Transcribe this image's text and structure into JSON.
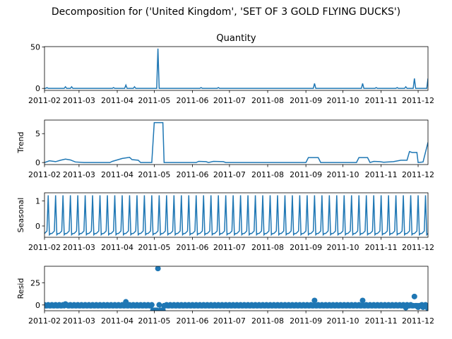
{
  "figure_title": "Decomposition for ('United Kingdom', 'SET OF 3 GOLD FLYING DUCKS')",
  "line_color": "#1f77b4",
  "x_tick_labels": [
    "2011-02",
    "2011-03",
    "2011-04",
    "2011-05",
    "2011-06",
    "2011-07",
    "2011-08",
    "2011-09",
    "2011-10",
    "2011-11",
    "2011-12"
  ],
  "chart_data": [
    {
      "type": "line",
      "title": "Quantity",
      "ylabel": "",
      "xlim": [
        "2011-02-01",
        "2011-12-09"
      ],
      "ylim": [
        -2.4,
        50.4
      ],
      "yticks": [
        0,
        50
      ],
      "x_tick_labels": [
        "2011-02",
        "2011-03",
        "2011-04",
        "2011-05",
        "2011-06",
        "2011-07",
        "2011-08",
        "2011-09",
        "2011-10",
        "2011-11",
        "2011-12"
      ],
      "baseline": 0,
      "x_start": "2011-02-01",
      "x_end": "2011-12-09",
      "points": [
        {
          "x": "2011-02-03",
          "y": 1
        },
        {
          "x": "2011-02-18",
          "y": 2
        },
        {
          "x": "2011-02-23",
          "y": 2
        },
        {
          "x": "2011-03-29",
          "y": 1
        },
        {
          "x": "2011-04-08",
          "y": 4
        },
        {
          "x": "2011-04-15",
          "y": 2
        },
        {
          "x": "2011-05-04",
          "y": 48
        },
        {
          "x": "2011-06-08",
          "y": 1
        },
        {
          "x": "2011-06-22",
          "y": 1
        },
        {
          "x": "2011-09-08",
          "y": 6
        },
        {
          "x": "2011-10-17",
          "y": 6
        },
        {
          "x": "2011-10-28",
          "y": 1
        },
        {
          "x": "2011-11-14",
          "y": 1
        },
        {
          "x": "2011-11-21",
          "y": 2
        },
        {
          "x": "2011-11-28",
          "y": 12
        },
        {
          "x": "2011-12-09",
          "y": 12
        }
      ]
    },
    {
      "type": "line",
      "title": "",
      "ylabel": "Trend",
      "xlim": [
        "2011-02-01",
        "2011-12-09"
      ],
      "ylim": [
        -0.35,
        7.35
      ],
      "yticks": [
        0,
        5
      ],
      "x_tick_labels": [
        "2011-02",
        "2011-03",
        "2011-04",
        "2011-05",
        "2011-06",
        "2011-07",
        "2011-08",
        "2011-09",
        "2011-10",
        "2011-11",
        "2011-12"
      ],
      "points": [
        {
          "x": "2011-02-01",
          "y": 0
        },
        {
          "x": "2011-02-05",
          "y": 0.3
        },
        {
          "x": "2011-02-10",
          "y": 0.15
        },
        {
          "x": "2011-02-14",
          "y": 0.4
        },
        {
          "x": "2011-02-18",
          "y": 0.6
        },
        {
          "x": "2011-02-22",
          "y": 0.45
        },
        {
          "x": "2011-02-26",
          "y": 0.1
        },
        {
          "x": "2011-03-05",
          "y": 0
        },
        {
          "x": "2011-03-26",
          "y": 0
        },
        {
          "x": "2011-03-28",
          "y": 0.2
        },
        {
          "x": "2011-04-05",
          "y": 0.7
        },
        {
          "x": "2011-04-11",
          "y": 0.9
        },
        {
          "x": "2011-04-13",
          "y": 0.5
        },
        {
          "x": "2011-04-18",
          "y": 0.4
        },
        {
          "x": "2011-04-20",
          "y": 0
        },
        {
          "x": "2011-04-29",
          "y": 0
        },
        {
          "x": "2011-05-01",
          "y": 6.9
        },
        {
          "x": "2011-05-08",
          "y": 6.9
        },
        {
          "x": "2011-05-09",
          "y": 0
        },
        {
          "x": "2011-06-04",
          "y": 0
        },
        {
          "x": "2011-06-06",
          "y": 0.2
        },
        {
          "x": "2011-06-12",
          "y": 0.15
        },
        {
          "x": "2011-06-14",
          "y": 0
        },
        {
          "x": "2011-06-18",
          "y": 0.2
        },
        {
          "x": "2011-06-26",
          "y": 0.15
        },
        {
          "x": "2011-06-28",
          "y": 0
        },
        {
          "x": "2011-09-01",
          "y": 0
        },
        {
          "x": "2011-09-03",
          "y": 0.85
        },
        {
          "x": "2011-09-11",
          "y": 0.85
        },
        {
          "x": "2011-09-13",
          "y": 0
        },
        {
          "x": "2011-10-12",
          "y": 0
        },
        {
          "x": "2011-10-14",
          "y": 0.85
        },
        {
          "x": "2011-10-21",
          "y": 0.85
        },
        {
          "x": "2011-10-23",
          "y": 0
        },
        {
          "x": "2011-10-26",
          "y": 0.2
        },
        {
          "x": "2011-10-31",
          "y": 0.15
        },
        {
          "x": "2011-11-03",
          "y": 0.05
        },
        {
          "x": "2011-11-11",
          "y": 0.15
        },
        {
          "x": "2011-11-17",
          "y": 0.4
        },
        {
          "x": "2011-11-22",
          "y": 0.4
        },
        {
          "x": "2011-11-24",
          "y": 1.9
        },
        {
          "x": "2011-11-26",
          "y": 1.75
        },
        {
          "x": "2011-11-30",
          "y": 1.75
        },
        {
          "x": "2011-12-01",
          "y": 0
        },
        {
          "x": "2011-12-05",
          "y": 0.1
        },
        {
          "x": "2011-12-09",
          "y": 3.5
        }
      ]
    },
    {
      "type": "line",
      "title": "",
      "ylabel": "Seasonal",
      "xlim": [
        "2011-02-01",
        "2011-12-09"
      ],
      "ylim": [
        -0.45,
        1.32
      ],
      "yticks": [
        0,
        1
      ],
      "x_tick_labels": [
        "2011-02",
        "2011-03",
        "2011-04",
        "2011-05",
        "2011-06",
        "2011-07",
        "2011-08",
        "2011-09",
        "2011-10",
        "2011-11",
        "2011-12"
      ],
      "period_days": 6,
      "first_peak": "2011-02-04",
      "peak_value": 1.22,
      "trough_value": -0.35,
      "baseline_value": -0.25
    },
    {
      "type": "scatter",
      "title": "",
      "ylabel": "Resid",
      "xlim": [
        "2011-02-01",
        "2011-12-09"
      ],
      "ylim": [
        -6.5,
        43.5
      ],
      "yticks": [
        0,
        25
      ],
      "x_tick_labels": [
        "2011-02",
        "2011-03",
        "2011-04",
        "2011-05",
        "2011-06",
        "2011-07",
        "2011-08",
        "2011-09",
        "2011-10",
        "2011-11",
        "2011-12"
      ],
      "background_value": -0.5,
      "points": [
        {
          "x": "2011-02-18",
          "y": 1
        },
        {
          "x": "2011-04-08",
          "y": 3.5
        },
        {
          "x": "2011-04-30",
          "y": -6
        },
        {
          "x": "2011-05-01",
          "y": -6
        },
        {
          "x": "2011-05-02",
          "y": -6
        },
        {
          "x": "2011-05-03",
          "y": -6
        },
        {
          "x": "2011-05-04",
          "y": 41
        },
        {
          "x": "2011-05-06",
          "y": -6
        },
        {
          "x": "2011-05-07",
          "y": -6
        },
        {
          "x": "2011-05-08",
          "y": -6
        },
        {
          "x": "2011-09-08",
          "y": 5
        },
        {
          "x": "2011-10-17",
          "y": 5
        },
        {
          "x": "2011-11-21",
          "y": -3
        },
        {
          "x": "2011-11-28",
          "y": 9.5
        },
        {
          "x": "2011-12-01",
          "y": -2.5
        },
        {
          "x": "2011-12-05",
          "y": -2.5
        },
        {
          "x": "2011-12-09",
          "y": -4
        }
      ]
    }
  ]
}
